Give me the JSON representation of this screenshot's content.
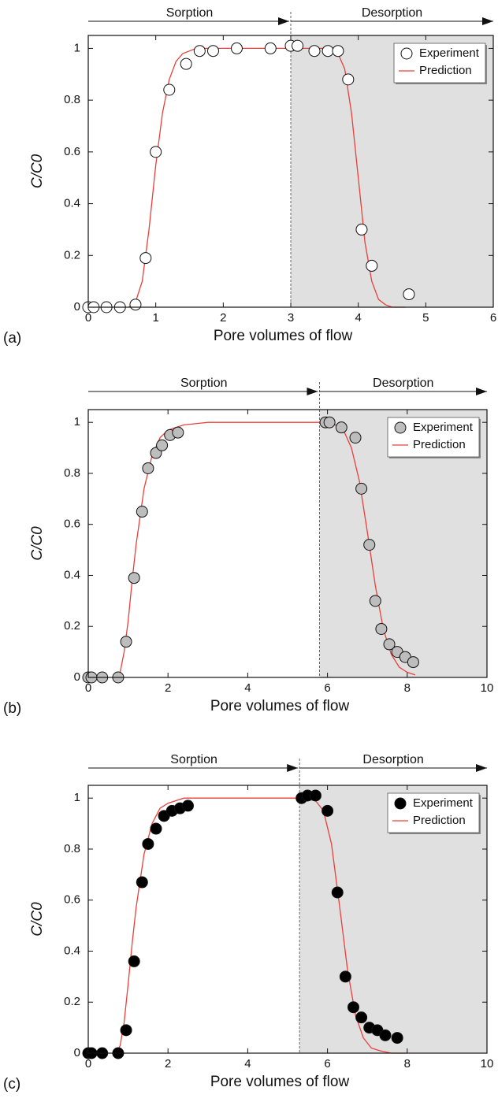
{
  "chart_data": [
    {
      "type": "scatter",
      "panel_label": "(a)",
      "xlabel": "Pore volumes of flow",
      "ylabel": "C/C0",
      "annotations": [
        "Sorption",
        "Desorption"
      ],
      "shaded_from": 3,
      "shade_color": "#e0e0e0",
      "xlim": [
        0,
        6
      ],
      "ylim": [
        0,
        1.05
      ],
      "xticks": [
        0,
        1,
        2,
        3,
        4,
        5,
        6
      ],
      "yticks": [
        0,
        0.2,
        0.4,
        0.6,
        0.8,
        1
      ],
      "legend": "upper right",
      "series": [
        {
          "name": "Experiment",
          "type": "scatter",
          "color": "#ffffff",
          "x": [
            0,
            0.08,
            0.27,
            0.47,
            0.7,
            0.85,
            1.0,
            1.2,
            1.45,
            1.65,
            1.85,
            2.2,
            2.7,
            3.0,
            3.1,
            3.35,
            3.55,
            3.7,
            3.85,
            4.05,
            4.2,
            4.75
          ],
          "values": [
            0,
            0,
            0,
            0,
            0.01,
            0.19,
            0.6,
            0.84,
            0.94,
            0.99,
            0.99,
            1.0,
            1.0,
            1.01,
            1.01,
            0.99,
            0.99,
            0.99,
            0.88,
            0.3,
            0.16,
            0.05
          ]
        },
        {
          "name": "Prediction",
          "type": "line",
          "color": "#e8403a",
          "x": [
            0.6,
            0.7,
            0.8,
            0.9,
            1.0,
            1.1,
            1.2,
            1.3,
            1.4,
            1.5,
            1.6,
            1.8,
            2.0,
            3.0,
            3.6,
            3.7,
            3.8,
            3.9,
            4.0,
            4.1,
            4.2,
            4.3,
            4.4,
            4.5,
            4.7
          ],
          "values": [
            0,
            0.02,
            0.1,
            0.3,
            0.55,
            0.75,
            0.88,
            0.95,
            0.98,
            0.99,
            1.0,
            1.0,
            1.0,
            1.0,
            1.0,
            0.98,
            0.92,
            0.75,
            0.5,
            0.25,
            0.1,
            0.03,
            0.01,
            0,
            0
          ]
        }
      ]
    },
    {
      "type": "scatter",
      "panel_label": "(b)",
      "xlabel": "Pore volumes of flow",
      "ylabel": "C/C0",
      "annotations": [
        "Sorption",
        "Desorption"
      ],
      "shaded_from": 5.8,
      "shade_color": "#e0e0e0",
      "xlim": [
        0,
        10
      ],
      "ylim": [
        0,
        1.05
      ],
      "xticks": [
        0,
        2,
        4,
        6,
        8,
        10
      ],
      "yticks": [
        0,
        0.2,
        0.4,
        0.6,
        0.8,
        1
      ],
      "legend": "upper right",
      "series": [
        {
          "name": "Experiment",
          "type": "scatter",
          "color": "#bdbdbd",
          "x": [
            0,
            0.08,
            0.35,
            0.75,
            0.95,
            1.15,
            1.35,
            1.5,
            1.7,
            1.85,
            2.05,
            2.25,
            5.95,
            6.05,
            6.35,
            6.7,
            6.85,
            7.05,
            7.2,
            7.35,
            7.55,
            7.75,
            7.95,
            8.15
          ],
          "values": [
            0,
            0,
            0,
            0,
            0.14,
            0.39,
            0.65,
            0.82,
            0.88,
            0.91,
            0.95,
            0.96,
            1.0,
            1.0,
            0.98,
            0.94,
            0.74,
            0.52,
            0.3,
            0.19,
            0.13,
            0.1,
            0.08,
            0.06
          ]
        },
        {
          "name": "Prediction",
          "type": "line",
          "color": "#e8403a",
          "x": [
            0.7,
            0.8,
            0.9,
            1.0,
            1.1,
            1.2,
            1.4,
            1.6,
            1.8,
            2.0,
            2.4,
            3,
            5.8,
            6.2,
            6.4,
            6.6,
            6.8,
            7.0,
            7.2,
            7.4,
            7.6,
            7.8,
            8.0,
            8.2
          ],
          "values": [
            0,
            0.02,
            0.1,
            0.22,
            0.38,
            0.52,
            0.74,
            0.87,
            0.94,
            0.97,
            0.99,
            1.0,
            1.0,
            0.99,
            0.97,
            0.9,
            0.77,
            0.57,
            0.36,
            0.19,
            0.09,
            0.04,
            0.02,
            0.01
          ]
        }
      ]
    },
    {
      "type": "scatter",
      "panel_label": "(c)",
      "xlabel": "Pore volumes of flow",
      "ylabel": "C/C0",
      "annotations": [
        "Sorption",
        "Desorption"
      ],
      "shaded_from": 5.3,
      "shade_color": "#e0e0e0",
      "xlim": [
        0,
        10
      ],
      "ylim": [
        0,
        1.05
      ],
      "xticks": [
        0,
        2,
        4,
        6,
        8,
        10
      ],
      "yticks": [
        0,
        0.2,
        0.4,
        0.6,
        0.8,
        1
      ],
      "legend": "upper right",
      "series": [
        {
          "name": "Experiment",
          "type": "scatter",
          "color": "#000000",
          "x": [
            0,
            0.08,
            0.35,
            0.75,
            0.95,
            1.15,
            1.35,
            1.5,
            1.7,
            1.9,
            2.1,
            2.3,
            2.5,
            5.35,
            5.5,
            5.7,
            6.0,
            6.25,
            6.45,
            6.65,
            6.85,
            7.05,
            7.25,
            7.45,
            7.75
          ],
          "values": [
            0,
            0,
            0,
            0,
            0.09,
            0.36,
            0.67,
            0.82,
            0.88,
            0.93,
            0.95,
            0.96,
            0.97,
            1.0,
            1.01,
            1.01,
            0.95,
            0.63,
            0.3,
            0.18,
            0.14,
            0.1,
            0.09,
            0.07,
            0.06
          ]
        },
        {
          "name": "Prediction",
          "type": "line",
          "color": "#e8403a",
          "x": [
            0.7,
            0.8,
            0.9,
            1.0,
            1.1,
            1.2,
            1.4,
            1.6,
            1.8,
            2.0,
            2.4,
            3,
            5.3,
            5.7,
            5.9,
            6.1,
            6.3,
            6.5,
            6.7,
            6.9,
            7.1,
            7.3,
            7.6,
            8.0
          ],
          "values": [
            0,
            0.03,
            0.12,
            0.27,
            0.43,
            0.57,
            0.78,
            0.9,
            0.96,
            0.98,
            1.0,
            1.0,
            1.0,
            0.99,
            0.95,
            0.82,
            0.58,
            0.33,
            0.15,
            0.06,
            0.02,
            0.01,
            0,
            0
          ]
        }
      ]
    }
  ]
}
